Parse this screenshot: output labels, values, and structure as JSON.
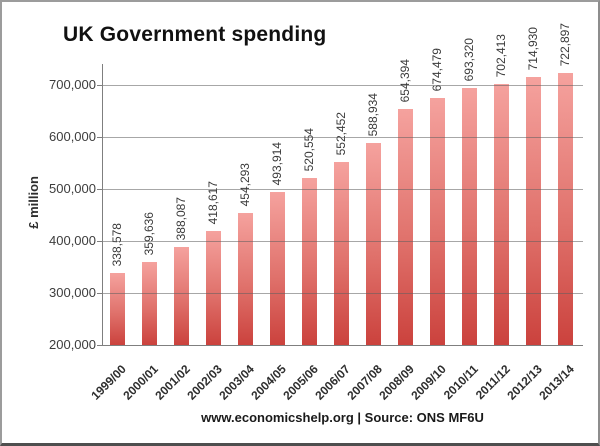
{
  "chart_data": {
    "type": "bar",
    "title": "UK Government spending",
    "xlabel": "",
    "ylabel": "£ million",
    "categories": [
      "1999/00",
      "2000/01",
      "2001/02",
      "2002/03",
      "2003/04",
      "2004/05",
      "2005/06",
      "2006/07",
      "2007/08",
      "2008/09",
      "2009/10",
      "2010/11",
      "2011/12",
      "2012/13",
      "2013/14"
    ],
    "values": [
      338578,
      359636,
      388087,
      418617,
      454293,
      493914,
      520554,
      552452,
      588934,
      654394,
      674479,
      693320,
      702413,
      714930,
      722897
    ],
    "value_labels": [
      "338,578",
      "359,636",
      "388,087",
      "418,617",
      "454,293",
      "493,914",
      "520,554",
      "552,452",
      "588,934",
      "654,394",
      "674,479",
      "693,320",
      "702,413",
      "714,930",
      "722,897"
    ],
    "ylim": [
      200000,
      750000
    ],
    "yticks": [
      200000,
      300000,
      400000,
      500000,
      600000,
      700000
    ],
    "ytick_labels": [
      "200,000",
      "300,000",
      "400,000",
      "500,000",
      "600,000",
      "700,000"
    ],
    "grid": true,
    "legend": "none",
    "bar_color_top": "#f5a29e",
    "bar_color_bottom": "#cb423d",
    "source_note": "www.economicshelp.org | Source: ONS MF6U"
  }
}
